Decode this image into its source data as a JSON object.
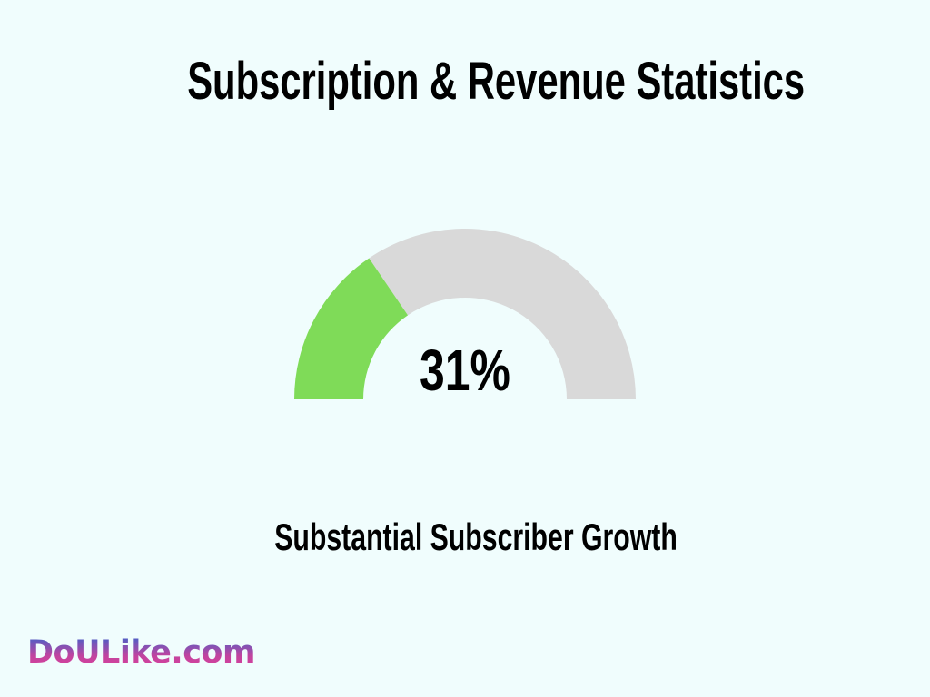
{
  "chart_data": {
    "type": "gauge",
    "title": "Subscription & Revenue Statistics",
    "value": 31,
    "max": 100,
    "value_label": "31%",
    "label": "Substantial Subscriber Growth",
    "colors": {
      "fill": "#7fdb58",
      "track": "#d9d9d9",
      "background": "#f0fdfd"
    }
  },
  "logo": {
    "text": "DoULike.com"
  }
}
